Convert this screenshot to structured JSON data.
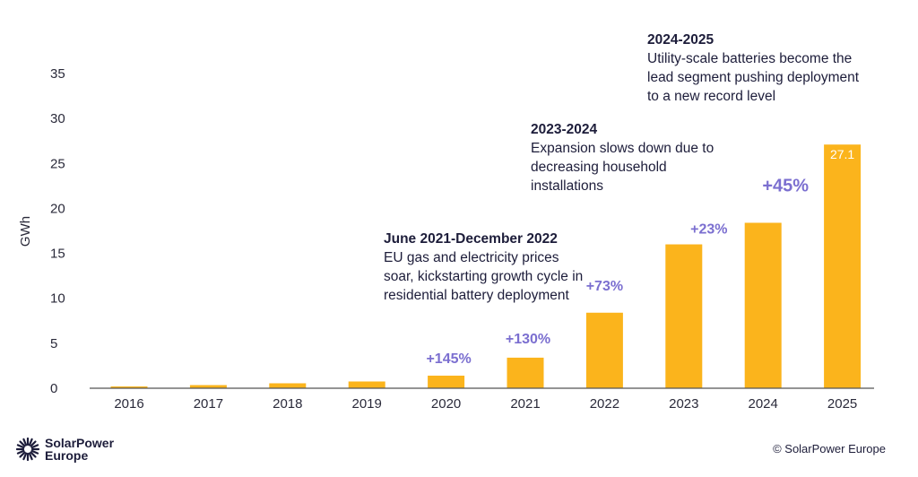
{
  "chart_data": {
    "type": "bar",
    "ylabel": "GWh",
    "xlabel": "",
    "ylim": [
      0,
      35
    ],
    "yticks": [
      0,
      5,
      10,
      15,
      20,
      25,
      30,
      35
    ],
    "grid": false,
    "categories": [
      "2016",
      "2017",
      "2018",
      "2019",
      "2020",
      "2021",
      "2022",
      "2023",
      "2024",
      "2025"
    ],
    "values": [
      0.2,
      0.35,
      0.55,
      0.75,
      1.4,
      3.4,
      8.4,
      16.0,
      18.4,
      27.1
    ],
    "bar_color": "#fbb41c",
    "data_labels": [
      {
        "category": "2025",
        "text": "27.1"
      }
    ],
    "growth_labels": [
      {
        "category": "2020",
        "text": "+145%"
      },
      {
        "category": "2021",
        "text": "+130%"
      },
      {
        "category": "2022",
        "text": "+73%"
      },
      {
        "category": "2023",
        "text": "+23%"
      },
      {
        "category": "2024",
        "text": "+45%"
      }
    ],
    "growth_color": "#7b6fd0",
    "annotations": [
      {
        "title": "June 2021-December 2022",
        "text": "EU gas and electricity prices soar, kickstarting growth cycle in residential battery deployment"
      },
      {
        "title": "2023-2024",
        "text": "Expansion slows down due to decreasing household installations"
      },
      {
        "title": "2024-2025",
        "text": "Utility-scale batteries become the lead segment pushing deployment to a new record level"
      }
    ]
  },
  "footer": {
    "logo_line1": "SolarPower",
    "logo_line2": "Europe",
    "copyright": "© SolarPower Europe"
  }
}
